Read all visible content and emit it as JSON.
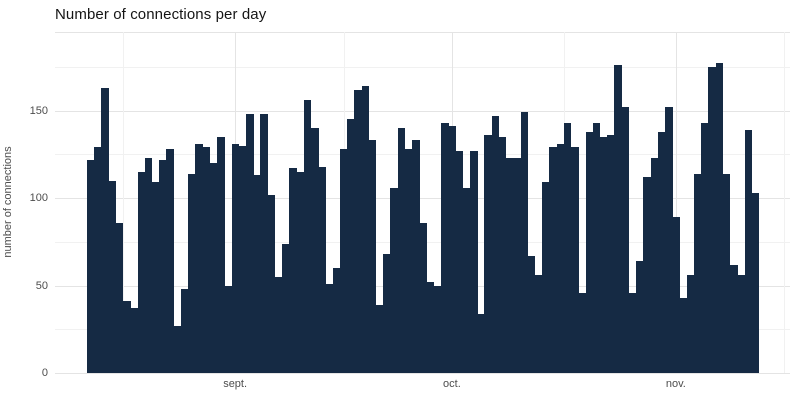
{
  "title": "Number of connections per day",
  "chart_data": {
    "type": "bar",
    "title": "Number of connections per day",
    "xlabel": "",
    "ylabel": "number of connections",
    "x_start": "Aug 12",
    "x_end": "Nov 12",
    "x_tick_labels": [
      "sept.",
      "oct.",
      "nov."
    ],
    "x_tick_day_index": [
      20,
      50,
      81
    ],
    "y_ticks": [
      0,
      50,
      100,
      150
    ],
    "y_minor_ticks": [
      25,
      75,
      125,
      175
    ],
    "ylim": [
      0,
      195
    ],
    "grid": "major+minor, light gray on white, no axis lines, no tick marks",
    "legend": "none",
    "bar_color": "#152a44",
    "values": [
      122,
      129,
      163,
      110,
      86,
      41,
      37,
      115,
      123,
      109,
      122,
      128,
      27,
      48,
      114,
      131,
      129,
      120,
      135,
      50,
      131,
      130,
      148,
      113,
      148,
      102,
      55,
      74,
      117,
      115,
      156,
      140,
      118,
      51,
      60,
      128,
      145,
      162,
      164,
      133,
      39,
      68,
      106,
      140,
      128,
      133,
      86,
      52,
      50,
      143,
      141,
      127,
      106,
      127,
      34,
      136,
      147,
      135,
      123,
      123,
      149,
      67,
      56,
      109,
      129,
      131,
      143,
      129,
      46,
      138,
      143,
      135,
      136,
      176,
      152,
      46,
      64,
      112,
      123,
      138,
      152,
      89,
      43,
      56,
      114,
      143,
      175,
      177,
      114,
      62,
      56,
      139,
      103
    ]
  },
  "colors": {
    "background": "#ffffff",
    "bar": "#152a44",
    "grid_major": "#e4e4e4",
    "grid_minor": "#f1f1f1",
    "axis_text": "#4d4d4d",
    "title_text": "#151515"
  }
}
